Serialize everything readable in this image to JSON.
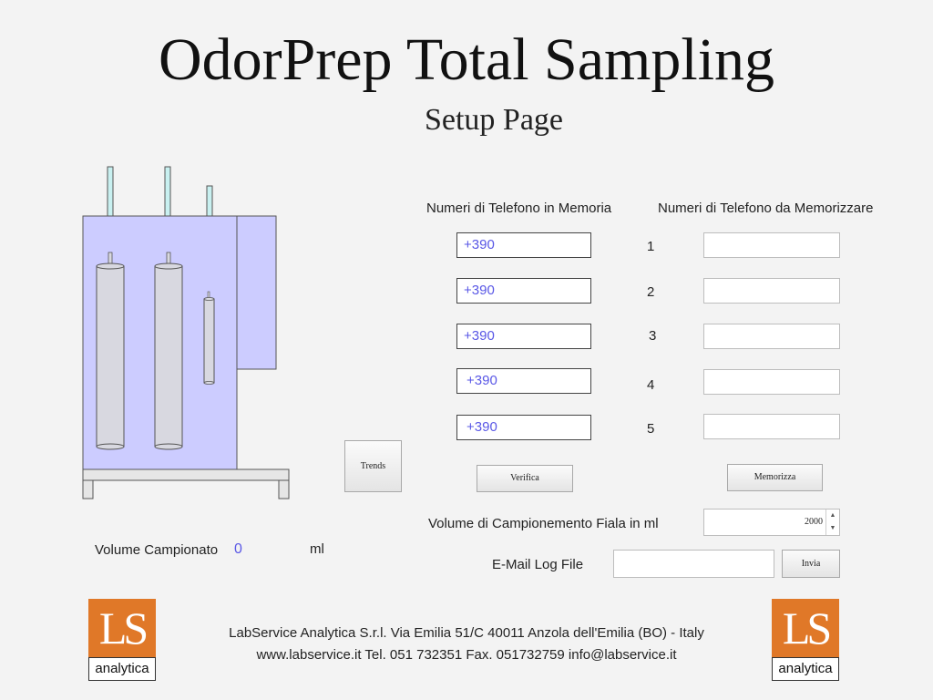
{
  "header": {
    "title": "OdorPrep Total Sampling",
    "subtitle": "Setup Page"
  },
  "phones": {
    "memory_heading": "Numeri di Telefono in Memoria",
    "store_heading": "Numeri di Telefono da Memorizzare",
    "rows": [
      {
        "index": "1",
        "memory": "+390",
        "new": ""
      },
      {
        "index": "2",
        "memory": "+390",
        "new": ""
      },
      {
        "index": "3",
        "memory": "+390",
        "new": ""
      },
      {
        "index": "4",
        "memory": "+390",
        "new": ""
      },
      {
        "index": "5",
        "memory": "+390",
        "new": ""
      }
    ],
    "verify_label": "Verifica",
    "store_label": "Memorizza"
  },
  "trends_label": "Trends",
  "volume": {
    "label": "Volume di Campionemento Fiala in ml",
    "value": "2000"
  },
  "email": {
    "label": "E-Mail Log File",
    "value": "",
    "send_label": "Invia"
  },
  "sampled": {
    "label": "Volume Campionato",
    "value": "0",
    "unit": "ml"
  },
  "footer": {
    "line1": "LabService Analytica S.r.l. Via Emilia 51/C 40011 Anzola dell'Emilia (BO) - Italy",
    "line2": "www.labservice.it Tel. 051 732351 Fax. 051732759 info@labservice.it"
  },
  "logo": {
    "letters": "LS",
    "caption": "analytica",
    "color": "#e07828"
  },
  "colors": {
    "value_text": "#5a58e6",
    "device_body": "#ccccff"
  }
}
